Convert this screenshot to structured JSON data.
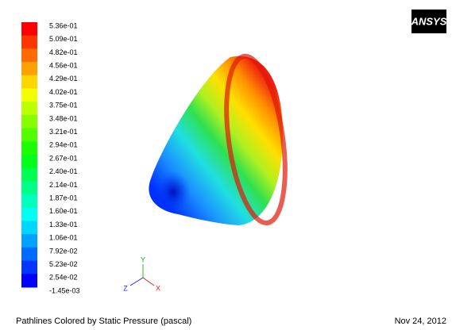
{
  "legend": {
    "labels": [
      "5.36e-01",
      "5.09e-01",
      "4.82e-01",
      "4.56e-01",
      "4.29e-01",
      "4.02e-01",
      "3.75e-01",
      "3.48e-01",
      "3.21e-01",
      "2.94e-01",
      "2.67e-01",
      "2.40e-01",
      "2.14e-01",
      "1.87e-01",
      "1.60e-01",
      "1.33e-01",
      "1.06e-01",
      "7.92e-02",
      "5.23e-02",
      "2.54e-02",
      "-1.45e-03"
    ]
  },
  "logo": "ANSYS",
  "axes": {
    "y": "Y",
    "z": "Z",
    "x": "X"
  },
  "caption": "Pathlines Colored by Static Pressure (pascal)",
  "date": "Nov 24, 2012"
}
